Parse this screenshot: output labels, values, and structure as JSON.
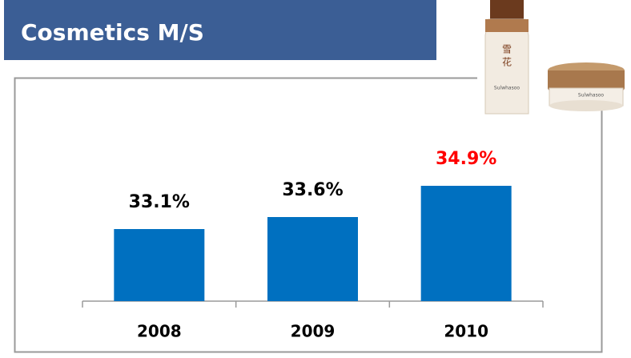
{
  "chart_data": {
    "type": "bar",
    "title": "Cosmetics M/S",
    "categories": [
      "2008",
      "2009",
      "2010"
    ],
    "values": [
      33.1,
      33.6,
      34.9
    ],
    "value_labels": [
      "33.1%",
      "33.6%",
      "34.9%"
    ],
    "value_label_colors": [
      "#000000",
      "#000000",
      "#ff0000"
    ],
    "color": "#0070c0",
    "ylim": [
      30.1,
      35.5
    ]
  }
}
